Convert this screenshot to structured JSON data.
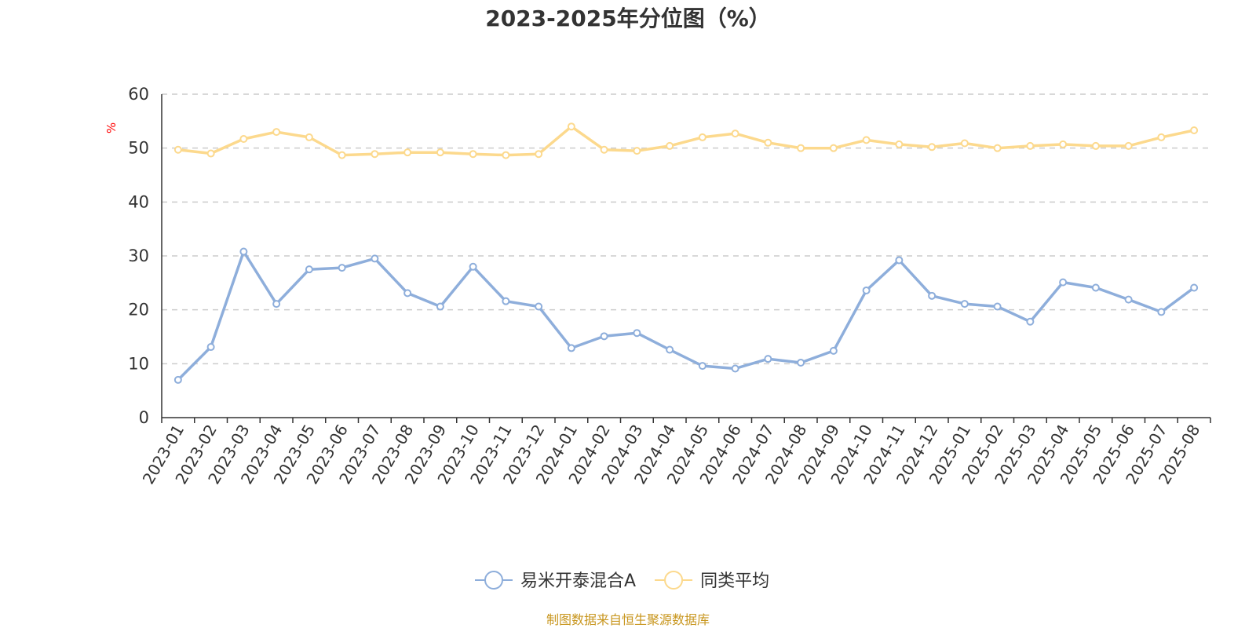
{
  "chart_data": {
    "type": "line",
    "title": "2023-2025年分位图（%）",
    "ylabel": "%",
    "ylim": [
      0,
      60
    ],
    "yticks": [
      0,
      10,
      20,
      30,
      40,
      50,
      60
    ],
    "grid": true,
    "legend_position": "bottom",
    "categories": [
      "2023-01",
      "2023-02",
      "2023-03",
      "2023-04",
      "2023-05",
      "2023-06",
      "2023-07",
      "2023-08",
      "2023-09",
      "2023-10",
      "2023-11",
      "2023-12",
      "2024-01",
      "2024-02",
      "2024-03",
      "2024-04",
      "2024-05",
      "2024-06",
      "2024-07",
      "2024-08",
      "2024-09",
      "2024-10",
      "2024-11",
      "2024-12",
      "2025-01",
      "2025-02",
      "2025-03",
      "2025-04",
      "2025-05",
      "2025-06",
      "2025-07",
      "2025-08"
    ],
    "series": [
      {
        "name": "易米开泰混合A",
        "color": "#8eaedb",
        "values": [
          7.0,
          13.1,
          30.8,
          21.1,
          27.5,
          27.8,
          29.5,
          23.1,
          20.6,
          28.0,
          21.6,
          20.6,
          12.9,
          15.1,
          15.7,
          12.6,
          9.6,
          9.1,
          10.9,
          10.2,
          12.4,
          23.6,
          29.2,
          22.6,
          21.1,
          20.6,
          17.8,
          25.1,
          24.1,
          21.9,
          19.6,
          24.1
        ]
      },
      {
        "name": "同类平均",
        "color": "#fcd98d",
        "values": [
          49.7,
          49.0,
          51.7,
          53.0,
          52.0,
          48.7,
          48.9,
          49.2,
          49.2,
          48.9,
          48.7,
          48.9,
          54.0,
          49.7,
          49.5,
          50.4,
          52.0,
          52.7,
          51.0,
          50.0,
          50.0,
          51.5,
          50.7,
          50.2,
          50.9,
          50.0,
          50.4,
          50.7,
          50.4,
          50.4,
          52.0,
          53.3
        ]
      }
    ]
  },
  "footer": {
    "source_text": "制图数据来自恒生聚源数据库"
  },
  "colors": {
    "grid": "#cccccc",
    "axis": "#333333",
    "source": "#c8961e"
  }
}
